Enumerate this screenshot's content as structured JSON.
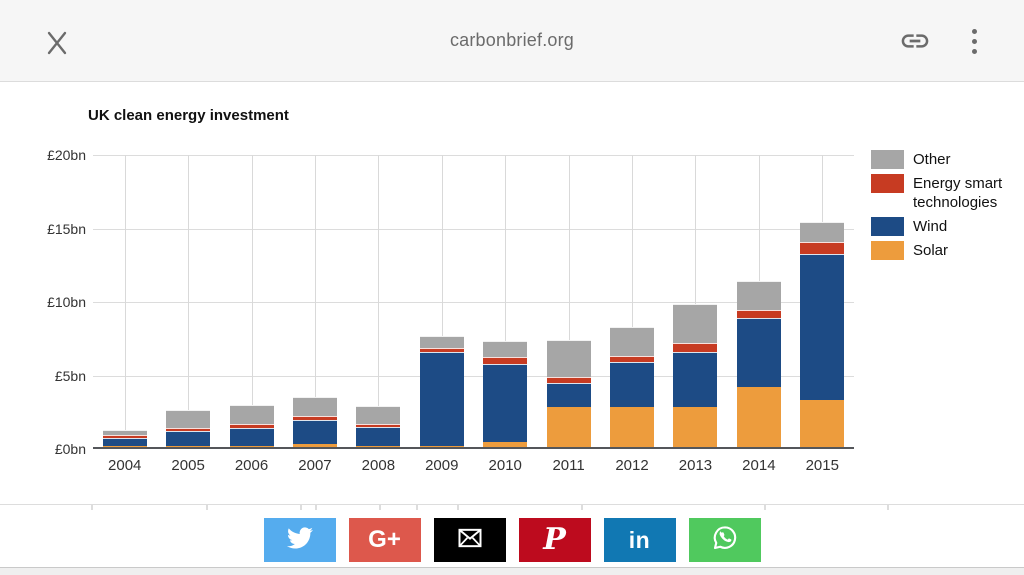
{
  "browser_bar": {
    "page_title": "carbonbrief.org"
  },
  "chart_data": {
    "type": "bar",
    "stacked": true,
    "title": "UK clean energy investment",
    "categories": [
      "2004",
      "2005",
      "2006",
      "2007",
      "2008",
      "2009",
      "2010",
      "2011",
      "2012",
      "2013",
      "2014",
      "2015"
    ],
    "series": [
      {
        "name": "Solar",
        "color": "#ed9c3d",
        "values": [
          0.05,
          0.05,
          0.1,
          0.2,
          0.05,
          0.05,
          0.35,
          2.75,
          2.75,
          2.75,
          4.1,
          3.2
        ]
      },
      {
        "name": "Wind",
        "color": "#1d4b85",
        "values": [
          0.55,
          1.0,
          1.2,
          1.6,
          1.3,
          6.4,
          5.3,
          1.65,
          3.05,
          3.75,
          4.7,
          9.95
        ]
      },
      {
        "name": "Energy smart technologies",
        "color": "#c73b22",
        "values": [
          0.2,
          0.2,
          0.25,
          0.25,
          0.2,
          0.25,
          0.5,
          0.4,
          0.4,
          0.6,
          0.55,
          0.85
        ]
      },
      {
        "name": "Other",
        "color": "#a6a6a6",
        "values": [
          0.35,
          1.2,
          1.3,
          1.3,
          1.2,
          0.8,
          1.1,
          2.5,
          2.0,
          2.65,
          1.95,
          1.35
        ]
      }
    ],
    "ylim": [
      0,
      20
    ],
    "ytick_values": [
      0,
      5,
      10,
      15,
      20
    ],
    "ytick_labels": [
      "£0bn",
      "£5bn",
      "£10bn",
      "£15bn",
      "£20bn"
    ],
    "grid": true,
    "legend_position": "top-right",
    "legend_order": [
      "Other",
      "Energy smart technologies",
      "Wind",
      "Solar"
    ]
  },
  "share_bar": {
    "buttons": [
      {
        "id": "twitter",
        "color": "#55acee",
        "label": ""
      },
      {
        "id": "google-plus",
        "color": "#dd584c",
        "label": "G+"
      },
      {
        "id": "email",
        "color": "#000000",
        "label": ""
      },
      {
        "id": "pinterest",
        "color": "#bd0b1e",
        "label": "P"
      },
      {
        "id": "linkedin",
        "color": "#1178b3",
        "label": "in"
      },
      {
        "id": "whatsapp",
        "color": "#50c95e",
        "label": ""
      }
    ]
  }
}
